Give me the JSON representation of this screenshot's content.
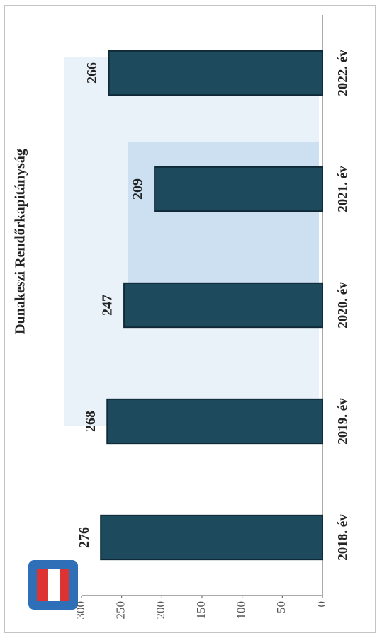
{
  "chart_data": {
    "type": "bar",
    "title": "Dunakeszi Rendőrkapitányság",
    "categories": [
      "2018. év",
      "2019. év",
      "2020. év",
      "2021. év",
      "2022. év"
    ],
    "values": [
      276,
      268,
      247,
      209,
      266
    ],
    "color": "#1e4a5e",
    "ylim": [
      0,
      300
    ],
    "yticks": [
      0,
      50,
      100,
      150,
      200,
      250,
      300
    ]
  }
}
